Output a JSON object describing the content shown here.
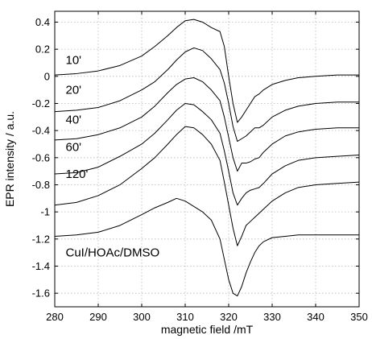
{
  "chart_data": {
    "type": "line",
    "title": "",
    "xlabel": "magnetic field /mT",
    "ylabel": "EPR intensity / a.u.",
    "xlim": [
      280,
      350
    ],
    "ylim": [
      -1.7,
      0.48
    ],
    "xticks": [
      280,
      290,
      300,
      310,
      320,
      330,
      340,
      350
    ],
    "yticks": [
      0.4,
      0.2,
      0,
      -0.2,
      -0.4,
      -0.6,
      -0.8,
      -1,
      -1.2,
      -1.4,
      -1.6
    ],
    "grid": true,
    "legend": "none",
    "series": [
      {
        "name": "10'",
        "x": [
          280,
          285,
          290,
          295,
          300,
          303,
          306,
          308,
          310,
          312,
          314,
          316,
          318,
          319,
          320,
          321,
          322,
          323,
          324,
          325,
          326,
          327,
          328,
          330,
          333,
          336,
          340,
          345,
          350
        ],
        "y": [
          0.01,
          0.02,
          0.04,
          0.08,
          0.15,
          0.22,
          0.3,
          0.36,
          0.41,
          0.42,
          0.4,
          0.36,
          0.33,
          0.22,
          0.0,
          -0.2,
          -0.34,
          -0.3,
          -0.25,
          -0.2,
          -0.15,
          -0.13,
          -0.1,
          -0.06,
          -0.03,
          -0.01,
          0.0,
          0.01,
          0.01
        ]
      },
      {
        "name": "20'",
        "x": [
          280,
          285,
          290,
          295,
          300,
          303,
          306,
          308,
          310,
          312,
          314,
          316,
          318,
          319,
          320,
          321,
          322,
          323,
          324,
          325,
          326,
          327,
          328,
          330,
          333,
          336,
          340,
          345,
          350
        ],
        "y": [
          -0.26,
          -0.25,
          -0.23,
          -0.18,
          -0.1,
          -0.04,
          0.05,
          0.12,
          0.18,
          0.21,
          0.19,
          0.13,
          0.05,
          -0.05,
          -0.2,
          -0.37,
          -0.48,
          -0.46,
          -0.44,
          -0.41,
          -0.38,
          -0.38,
          -0.36,
          -0.3,
          -0.25,
          -0.22,
          -0.2,
          -0.19,
          -0.19
        ]
      },
      {
        "name": "40'",
        "x": [
          280,
          285,
          290,
          295,
          300,
          303,
          306,
          308,
          310,
          312,
          314,
          316,
          318,
          319,
          320,
          321,
          322,
          323,
          324,
          325,
          326,
          327,
          328,
          330,
          333,
          336,
          340,
          345,
          350
        ],
        "y": [
          -0.47,
          -0.46,
          -0.43,
          -0.38,
          -0.3,
          -0.22,
          -0.12,
          -0.06,
          -0.02,
          -0.01,
          -0.04,
          -0.1,
          -0.18,
          -0.3,
          -0.45,
          -0.6,
          -0.7,
          -0.64,
          -0.64,
          -0.63,
          -0.61,
          -0.6,
          -0.56,
          -0.5,
          -0.44,
          -0.41,
          -0.39,
          -0.38,
          -0.38
        ]
      },
      {
        "name": "60'",
        "x": [
          280,
          285,
          290,
          295,
          300,
          303,
          306,
          308,
          310,
          312,
          314,
          316,
          318,
          319,
          320,
          321,
          322,
          323,
          324,
          325,
          326,
          327,
          328,
          330,
          333,
          336,
          340,
          345,
          350
        ],
        "y": [
          -0.72,
          -0.71,
          -0.67,
          -0.59,
          -0.5,
          -0.42,
          -0.32,
          -0.25,
          -0.2,
          -0.21,
          -0.26,
          -0.32,
          -0.42,
          -0.55,
          -0.7,
          -0.86,
          -0.95,
          -0.9,
          -0.86,
          -0.84,
          -0.83,
          -0.82,
          -0.79,
          -0.72,
          -0.66,
          -0.62,
          -0.6,
          -0.59,
          -0.58
        ]
      },
      {
        "name": "120'",
        "x": [
          280,
          285,
          290,
          295,
          300,
          303,
          306,
          308,
          310,
          312,
          314,
          316,
          318,
          319,
          320,
          321,
          322,
          323,
          324,
          325,
          326,
          327,
          328,
          330,
          333,
          336,
          340,
          345,
          350
        ],
        "y": [
          -0.95,
          -0.93,
          -0.88,
          -0.8,
          -0.68,
          -0.6,
          -0.5,
          -0.43,
          -0.37,
          -0.38,
          -0.43,
          -0.5,
          -0.62,
          -0.78,
          -0.95,
          -1.12,
          -1.25,
          -1.18,
          -1.1,
          -1.07,
          -1.04,
          -1.01,
          -0.98,
          -0.92,
          -0.86,
          -0.82,
          -0.8,
          -0.79,
          -0.78
        ]
      },
      {
        "name": "CuI/HOAc/DMSO",
        "x": [
          280,
          285,
          290,
          295,
          300,
          303,
          306,
          308,
          310,
          312,
          314,
          316,
          318,
          319,
          320,
          321,
          322,
          323,
          324,
          325,
          326,
          327,
          328,
          330,
          333,
          336,
          340,
          345,
          350
        ],
        "y": [
          -1.18,
          -1.17,
          -1.15,
          -1.1,
          -1.02,
          -0.97,
          -0.93,
          -0.9,
          -0.92,
          -0.96,
          -1.0,
          -1.06,
          -1.2,
          -1.35,
          -1.5,
          -1.6,
          -1.62,
          -1.55,
          -1.45,
          -1.37,
          -1.3,
          -1.25,
          -1.22,
          -1.19,
          -1.18,
          -1.17,
          -1.17,
          -1.17,
          -1.17
        ]
      }
    ],
    "annotations": [
      {
        "text": "10'",
        "x": 282.5,
        "y": 0.12
      },
      {
        "text": "20'",
        "x": 282.5,
        "y": -0.1
      },
      {
        "text": "40'",
        "x": 282.5,
        "y": -0.32
      },
      {
        "text": "60'",
        "x": 282.5,
        "y": -0.52
      },
      {
        "text": "120'",
        "x": 282.5,
        "y": -0.72
      },
      {
        "text": "CuI/HOAc/DMSO",
        "x": 282.5,
        "y": -1.3
      }
    ]
  }
}
